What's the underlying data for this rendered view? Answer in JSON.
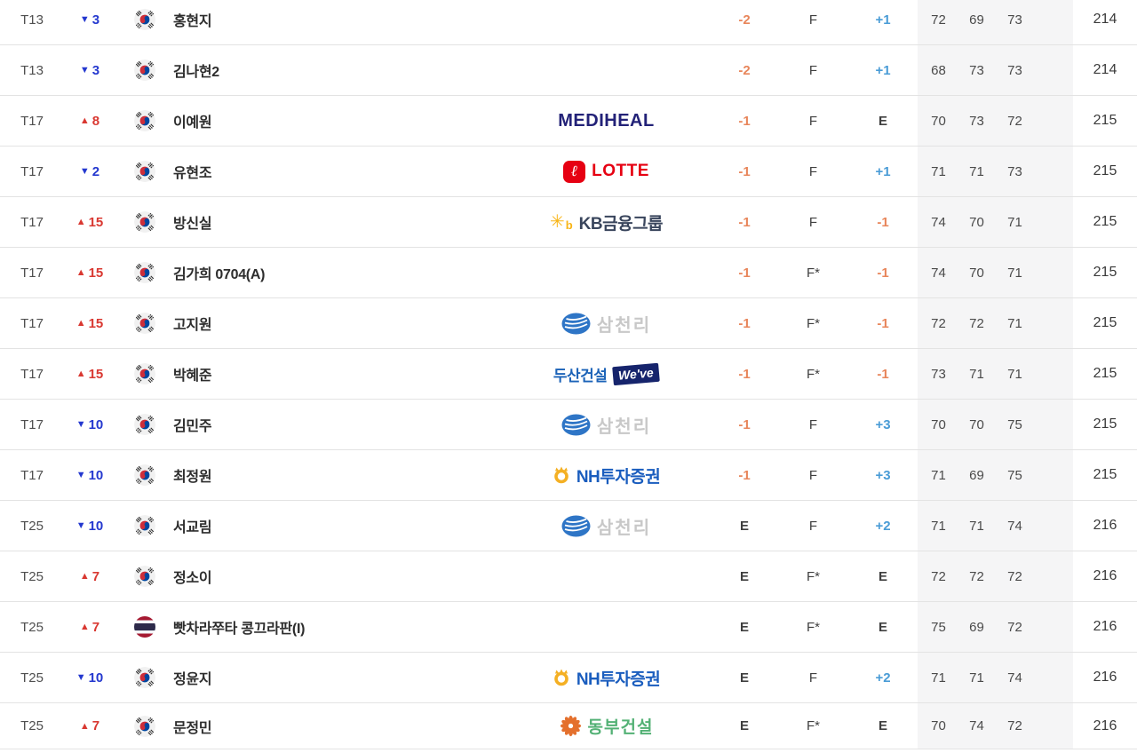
{
  "colors": {
    "negative": "#e8865b",
    "positive": "#4a9cd6",
    "even": "#3f3f3f",
    "move_up": "#d93831",
    "move_down": "#2438cf",
    "row_border": "#e3e3e3",
    "rounds_bg": "#f5f5f6",
    "flag_kr_red": "#cd2e3a",
    "flag_kr_blue": "#0047a0",
    "flag_th_red": "#a51931",
    "flag_th_blue": "#2d2a4a"
  },
  "brands": {
    "mediheal": {
      "text_color": "#232278"
    },
    "lotte": {
      "icon_bg": "#e60012",
      "text_color": "#e60012",
      "icon_glyph": "ℓ"
    },
    "kb": {
      "icon_color": "#f8b517",
      "text_color": "#39455c",
      "icon_glyph": "✳",
      "icon_sub": "b"
    },
    "samchully": {
      "icon_color": "#2e75c6",
      "text_color": "#c8c8c8"
    },
    "doosan": {
      "text_color": "#1c63b8",
      "box_bg": "#16246c",
      "box_text_color": "#ffffff"
    },
    "nh": {
      "icon_color": "#f4b024",
      "text_color": "#1a5dbe"
    },
    "dongbu": {
      "icon_color": "#e4702d",
      "text_color": "#53b175"
    }
  },
  "rows": [
    {
      "pos": "T13",
      "move": {
        "dir": "down",
        "val": "3"
      },
      "flag": "kr",
      "name": "홍현지",
      "logo": null,
      "score": "-2",
      "thru": "F",
      "today": "+1",
      "rounds": [
        "72",
        "69",
        "73"
      ],
      "total": "214"
    },
    {
      "pos": "T13",
      "move": {
        "dir": "down",
        "val": "3"
      },
      "flag": "kr",
      "name": "김나현2",
      "logo": null,
      "score": "-2",
      "thru": "F",
      "today": "+1",
      "rounds": [
        "68",
        "73",
        "73"
      ],
      "total": "214"
    },
    {
      "pos": "T17",
      "move": {
        "dir": "up",
        "val": "8"
      },
      "flag": "kr",
      "name": "이예원",
      "logo": {
        "brand": "mediheal",
        "label": "MEDIHEAL"
      },
      "score": "-1",
      "thru": "F",
      "today": "E",
      "rounds": [
        "70",
        "73",
        "72"
      ],
      "total": "215"
    },
    {
      "pos": "T17",
      "move": {
        "dir": "down",
        "val": "2"
      },
      "flag": "kr",
      "name": "유현조",
      "logo": {
        "brand": "lotte",
        "label": "LOTTE"
      },
      "score": "-1",
      "thru": "F",
      "today": "+1",
      "rounds": [
        "71",
        "71",
        "73"
      ],
      "total": "215"
    },
    {
      "pos": "T17",
      "move": {
        "dir": "up",
        "val": "15"
      },
      "flag": "kr",
      "name": "방신실",
      "logo": {
        "brand": "kb",
        "label": "KB금융그룹"
      },
      "score": "-1",
      "thru": "F",
      "today": "-1",
      "rounds": [
        "74",
        "70",
        "71"
      ],
      "total": "215"
    },
    {
      "pos": "T17",
      "move": {
        "dir": "up",
        "val": "15"
      },
      "flag": "kr",
      "name": "김가희 0704(A)",
      "logo": null,
      "score": "-1",
      "thru": "F*",
      "today": "-1",
      "rounds": [
        "74",
        "70",
        "71"
      ],
      "total": "215"
    },
    {
      "pos": "T17",
      "move": {
        "dir": "up",
        "val": "15"
      },
      "flag": "kr",
      "name": "고지원",
      "logo": {
        "brand": "samchully",
        "label": "삼천리"
      },
      "score": "-1",
      "thru": "F*",
      "today": "-1",
      "rounds": [
        "72",
        "72",
        "71"
      ],
      "total": "215"
    },
    {
      "pos": "T17",
      "move": {
        "dir": "up",
        "val": "15"
      },
      "flag": "kr",
      "name": "박혜준",
      "logo": {
        "brand": "doosan",
        "label": "두산건설",
        "label2": "We've"
      },
      "score": "-1",
      "thru": "F*",
      "today": "-1",
      "rounds": [
        "73",
        "71",
        "71"
      ],
      "total": "215"
    },
    {
      "pos": "T17",
      "move": {
        "dir": "down",
        "val": "10"
      },
      "flag": "kr",
      "name": "김민주",
      "logo": {
        "brand": "samchully",
        "label": "삼천리"
      },
      "score": "-1",
      "thru": "F",
      "today": "+3",
      "rounds": [
        "70",
        "70",
        "75"
      ],
      "total": "215"
    },
    {
      "pos": "T17",
      "move": {
        "dir": "down",
        "val": "10"
      },
      "flag": "kr",
      "name": "최정원",
      "logo": {
        "brand": "nh",
        "label": "NH투자증권"
      },
      "score": "-1",
      "thru": "F",
      "today": "+3",
      "rounds": [
        "71",
        "69",
        "75"
      ],
      "total": "215"
    },
    {
      "pos": "T25",
      "move": {
        "dir": "down",
        "val": "10"
      },
      "flag": "kr",
      "name": "서교림",
      "logo": {
        "brand": "samchully",
        "label": "삼천리"
      },
      "score": "E",
      "thru": "F",
      "today": "+2",
      "rounds": [
        "71",
        "71",
        "74"
      ],
      "total": "216"
    },
    {
      "pos": "T25",
      "move": {
        "dir": "up",
        "val": "7"
      },
      "flag": "kr",
      "name": "정소이",
      "logo": null,
      "score": "E",
      "thru": "F*",
      "today": "E",
      "rounds": [
        "72",
        "72",
        "72"
      ],
      "total": "216"
    },
    {
      "pos": "T25",
      "move": {
        "dir": "up",
        "val": "7"
      },
      "flag": "th",
      "name": "빳차라쭈타 콩끄라판(I)",
      "logo": null,
      "score": "E",
      "thru": "F*",
      "today": "E",
      "rounds": [
        "75",
        "69",
        "72"
      ],
      "total": "216"
    },
    {
      "pos": "T25",
      "move": {
        "dir": "down",
        "val": "10"
      },
      "flag": "kr",
      "name": "정윤지",
      "logo": {
        "brand": "nh",
        "label": "NH투자증권"
      },
      "score": "E",
      "thru": "F",
      "today": "+2",
      "rounds": [
        "71",
        "71",
        "74"
      ],
      "total": "216"
    },
    {
      "pos": "T25",
      "move": {
        "dir": "up",
        "val": "7"
      },
      "flag": "kr",
      "name": "문정민",
      "logo": {
        "brand": "dongbu",
        "label": "동부건설"
      },
      "score": "E",
      "thru": "F*",
      "today": "E",
      "rounds": [
        "70",
        "74",
        "72"
      ],
      "total": "216"
    }
  ]
}
